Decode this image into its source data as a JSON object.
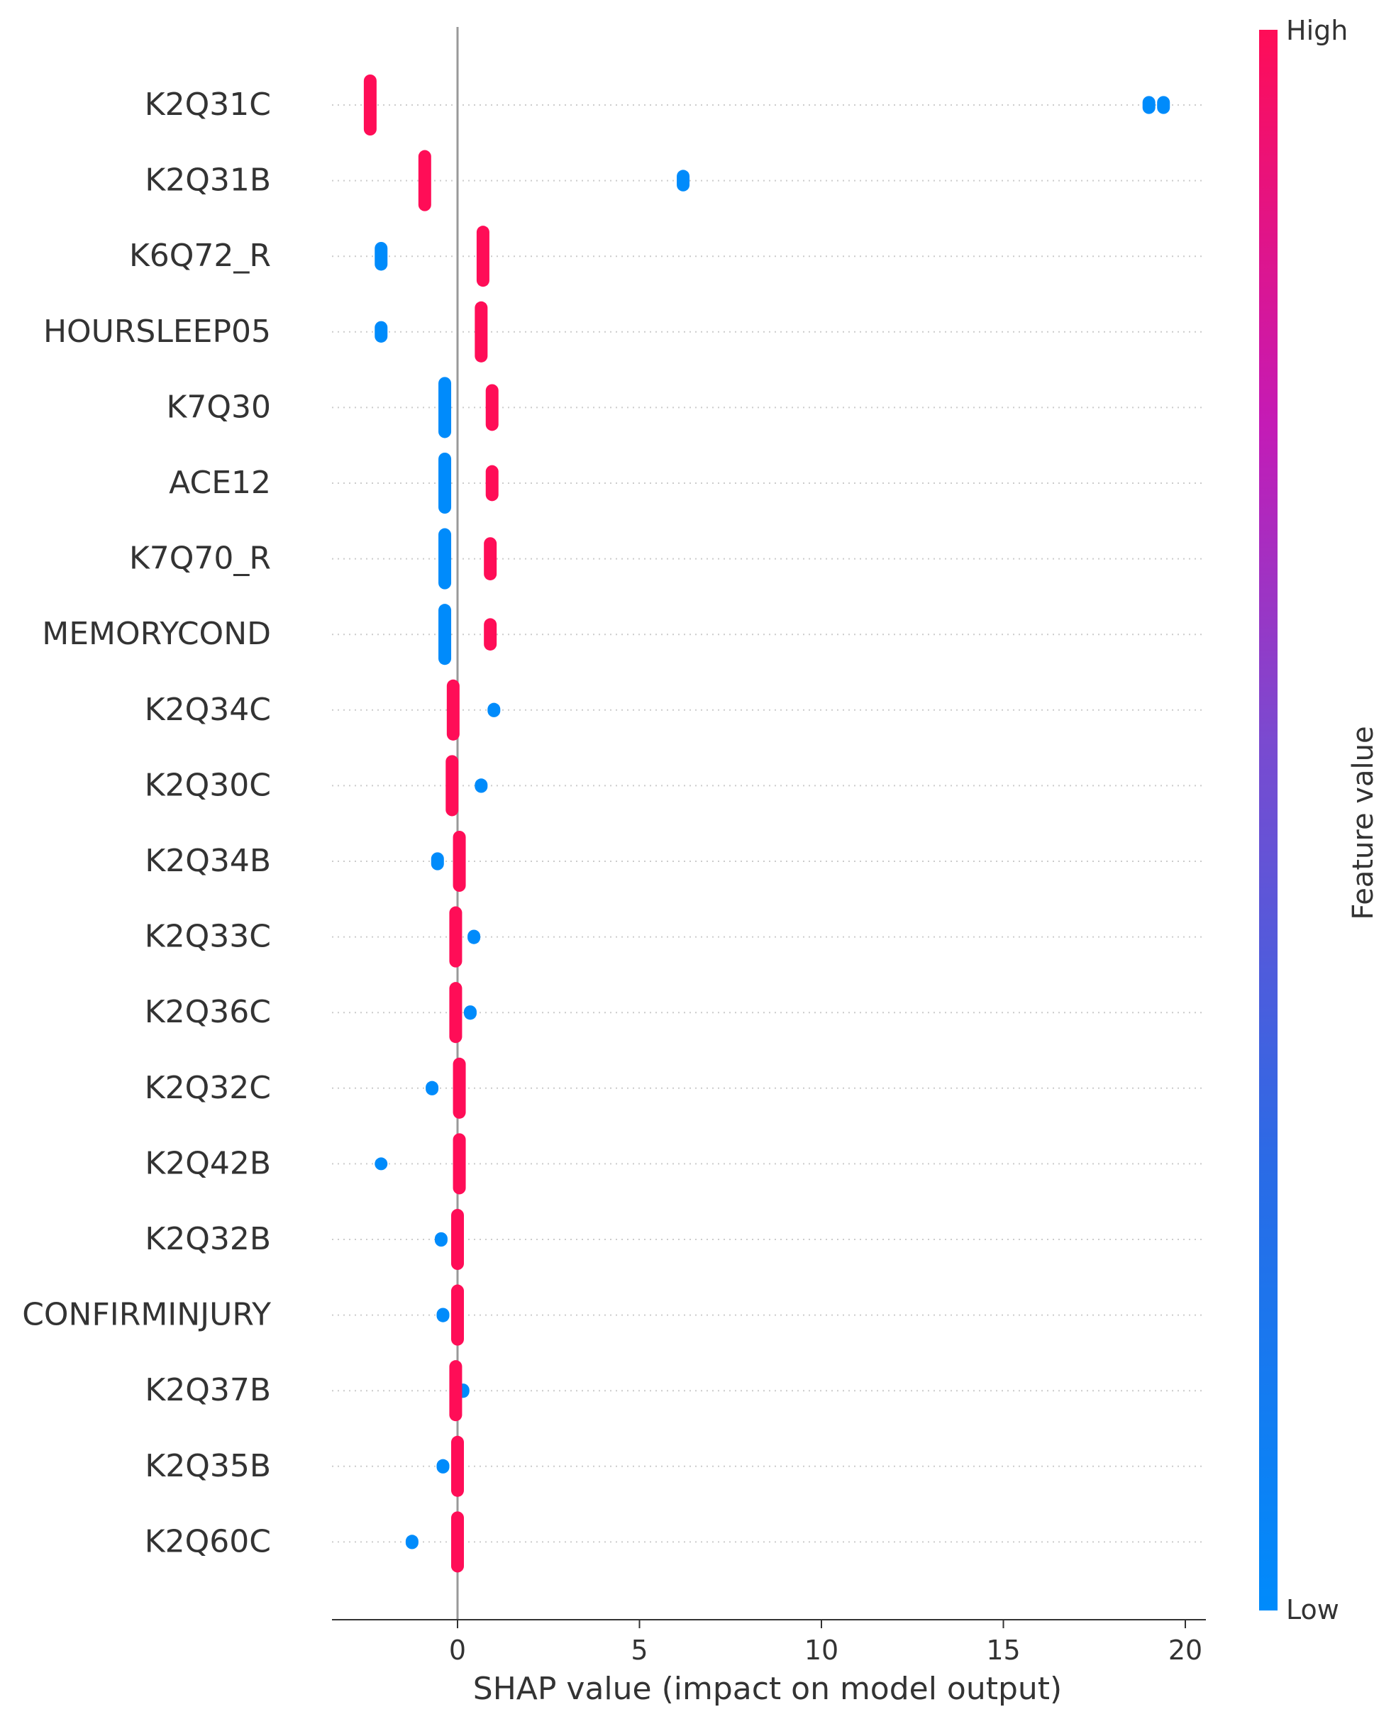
{
  "chart_data": {
    "type": "scatter",
    "subtype": "shap-beeswarm",
    "xlabel": "SHAP value (impact on model output)",
    "ylabel": "",
    "xlim": [
      -3.5,
      20.5
    ],
    "xticks": [
      0,
      5,
      10,
      15,
      20
    ],
    "grid": "dotted horizontal guides per feature",
    "legend": "colorbar-right",
    "colorbar": {
      "label": "Feature value",
      "high_label": "High",
      "low_label": "Low",
      "high_color": "#ff0d57",
      "low_color": "#1e88e5",
      "mid_color": "#c41bb6"
    },
    "colors": {
      "high": "#ff0d57",
      "low": "#008bfb",
      "zero_line": "#999999"
    },
    "features": [
      {
        "name": "K2Q31C",
        "points": [
          {
            "x": -2.4,
            "v": "high",
            "w": 0.85
          },
          {
            "x": 19.0,
            "v": "low",
            "w": 0.25
          },
          {
            "x": 19.4,
            "v": "low",
            "w": 0.25
          }
        ]
      },
      {
        "name": "K2Q31B",
        "points": [
          {
            "x": -0.9,
            "v": "high",
            "w": 0.85
          },
          {
            "x": 6.2,
            "v": "low",
            "w": 0.3
          }
        ]
      },
      {
        "name": "K6Q72_R",
        "points": [
          {
            "x": -2.1,
            "v": "low",
            "w": 0.4
          },
          {
            "x": 0.7,
            "v": "high",
            "w": 0.85
          }
        ]
      },
      {
        "name": "HOURSLEEP05",
        "points": [
          {
            "x": -2.1,
            "v": "low",
            "w": 0.3
          },
          {
            "x": 0.65,
            "v": "high",
            "w": 0.85
          }
        ]
      },
      {
        "name": "K7Q30",
        "points": [
          {
            "x": -0.35,
            "v": "low",
            "w": 0.85
          },
          {
            "x": 0.95,
            "v": "high",
            "w": 0.65
          }
        ]
      },
      {
        "name": "ACE12",
        "points": [
          {
            "x": -0.35,
            "v": "low",
            "w": 0.85
          },
          {
            "x": 0.95,
            "v": "high",
            "w": 0.5
          }
        ]
      },
      {
        "name": "K7Q70_R",
        "points": [
          {
            "x": -0.35,
            "v": "low",
            "w": 0.85
          },
          {
            "x": 0.9,
            "v": "high",
            "w": 0.6
          }
        ]
      },
      {
        "name": "MEMORYCOND",
        "points": [
          {
            "x": -0.35,
            "v": "low",
            "w": 0.85
          },
          {
            "x": 0.9,
            "v": "high",
            "w": 0.45
          }
        ]
      },
      {
        "name": "K2Q34C",
        "points": [
          {
            "x": -0.12,
            "v": "high",
            "w": 0.85
          },
          {
            "x": 1.0,
            "v": "low",
            "w": 0.2
          }
        ]
      },
      {
        "name": "K2Q30C",
        "points": [
          {
            "x": -0.15,
            "v": "high",
            "w": 0.85
          },
          {
            "x": 0.65,
            "v": "low",
            "w": 0.2
          }
        ]
      },
      {
        "name": "K2Q34B",
        "points": [
          {
            "x": -0.55,
            "v": "low",
            "w": 0.25
          },
          {
            "x": 0.05,
            "v": "high",
            "w": 0.85
          }
        ]
      },
      {
        "name": "K2Q33C",
        "points": [
          {
            "x": -0.05,
            "v": "high",
            "w": 0.85
          },
          {
            "x": 0.45,
            "v": "low",
            "w": 0.2
          }
        ]
      },
      {
        "name": "K2Q36C",
        "points": [
          {
            "x": -0.05,
            "v": "high",
            "w": 0.85
          },
          {
            "x": 0.35,
            "v": "low",
            "w": 0.2
          }
        ]
      },
      {
        "name": "K2Q32C",
        "points": [
          {
            "x": -0.7,
            "v": "low",
            "w": 0.2
          },
          {
            "x": 0.05,
            "v": "high",
            "w": 0.85
          }
        ]
      },
      {
        "name": "K2Q42B",
        "points": [
          {
            "x": -2.1,
            "v": "low",
            "w": 0.15
          },
          {
            "x": 0.05,
            "v": "high",
            "w": 0.85
          }
        ]
      },
      {
        "name": "K2Q32B",
        "points": [
          {
            "x": -0.45,
            "v": "low",
            "w": 0.2
          },
          {
            "x": 0.0,
            "v": "high",
            "w": 0.85
          }
        ]
      },
      {
        "name": "CONFIRMINJURY",
        "points": [
          {
            "x": -0.4,
            "v": "low",
            "w": 0.2
          },
          {
            "x": 0.0,
            "v": "high",
            "w": 0.85
          }
        ]
      },
      {
        "name": "K2Q37B",
        "points": [
          {
            "x": 0.15,
            "v": "low",
            "w": 0.2
          },
          {
            "x": -0.05,
            "v": "high",
            "w": 0.85
          }
        ]
      },
      {
        "name": "K2Q35B",
        "points": [
          {
            "x": -0.4,
            "v": "low",
            "w": 0.2
          },
          {
            "x": 0.0,
            "v": "high",
            "w": 0.85
          }
        ]
      },
      {
        "name": "K2Q60C",
        "points": [
          {
            "x": -1.25,
            "v": "low",
            "w": 0.2
          },
          {
            "x": 0.0,
            "v": "high",
            "w": 0.85
          }
        ]
      }
    ]
  }
}
